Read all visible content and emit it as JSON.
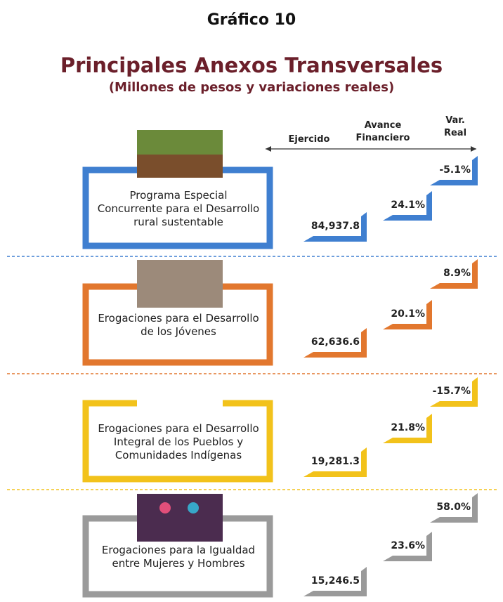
{
  "header": {
    "title": "Gráfico 10",
    "subtitle": "Principales Anexos Transversales",
    "units": "(Millones de pesos y variaciones reales)"
  },
  "columns": {
    "ejercido": "Ejercido",
    "avance": "Avance Financiero",
    "var": "Var. Real"
  },
  "rows": [
    {
      "label": "Programa Especial Concurrente para el Desarrollo rural sustentable",
      "ejercido": "84,937.8",
      "avance": "24.1%",
      "var": "-5.1%",
      "color": "#3f7fd0"
    },
    {
      "label": "Erogaciones para el Desarrollo de los Jóvenes",
      "ejercido": "62,636.6",
      "avance": "20.1%",
      "var": "8.9%",
      "color": "#e2772e"
    },
    {
      "label": "Erogaciones para el Desarrollo Integral de los Pueblos y Comunidades Indígenas",
      "ejercido": "19,281.3",
      "avance": "21.8%",
      "var": "-15.7%",
      "color": "#f2c21b"
    },
    {
      "label": "Erogaciones para la Igualdad entre Mujeres y Hombres",
      "ejercido": "15,246.5",
      "avance": "23.6%",
      "var": "58.0%",
      "color": "#9a9a9a"
    }
  ]
}
